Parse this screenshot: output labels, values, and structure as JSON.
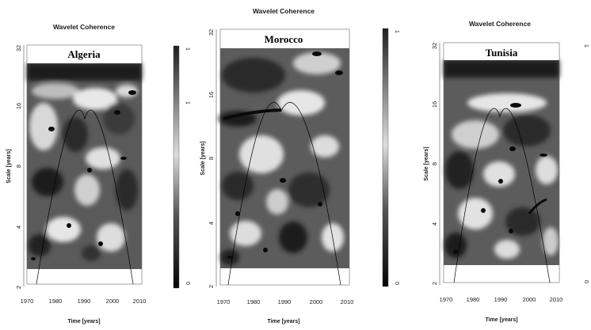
{
  "chart_data": [
    {
      "type": "heatmap",
      "title": "Wavelet Coherence",
      "panel_label": "Algeria",
      "xlabel": "Time [years]",
      "ylabel": "Scale [years]",
      "x_ticks": [
        "1970",
        "1980",
        "1990",
        "2000",
        "2010"
      ],
      "y_ticks": [
        "32",
        "16",
        "8",
        "4",
        "2"
      ],
      "xlim": [
        1970,
        2010
      ],
      "ylim": [
        2,
        32
      ],
      "y_scale": "log2",
      "colorbar": {
        "min_label": "0",
        "max_label": "1",
        "mid_label": "1"
      },
      "cone_of_influence": {
        "x": [
          1972,
          1990,
          2007
        ],
        "y": [
          2,
          14,
          2
        ]
      }
    },
    {
      "type": "heatmap",
      "title": "Wavelet Coherence",
      "panel_label": "Morocco",
      "xlabel": "Time [years]",
      "ylabel": "Scale [years]",
      "x_ticks": [
        "1970",
        "1980",
        "1990",
        "2000",
        "2010"
      ],
      "y_ticks": [
        "32",
        "16",
        "8",
        "4",
        "2"
      ],
      "xlim": [
        1970,
        2010
      ],
      "ylim": [
        2,
        32
      ],
      "y_scale": "log2",
      "colorbar": {
        "min_label": "0",
        "max_label": "1"
      },
      "cone_of_influence": {
        "x": [
          1972,
          1988,
          2008
        ],
        "y": [
          2,
          14,
          2
        ]
      }
    },
    {
      "type": "heatmap",
      "title": "Wavelet Coherence",
      "panel_label": "Tunisia",
      "xlabel": "Time [years]",
      "ylabel": "Scale [years]",
      "x_ticks": [
        "1970",
        "1980",
        "1990",
        "2000",
        "2010"
      ],
      "y_ticks": [
        "32",
        "16",
        "8",
        "4",
        "2"
      ],
      "xlim": [
        1970,
        2010
      ],
      "ylim": [
        2,
        32
      ],
      "y_scale": "log2",
      "colorbar": {
        "min_label": "0",
        "max_label": "1"
      },
      "cone_of_influence": {
        "x": [
          1973,
          1990,
          2007
        ],
        "y": [
          2,
          14,
          2
        ]
      }
    }
  ]
}
